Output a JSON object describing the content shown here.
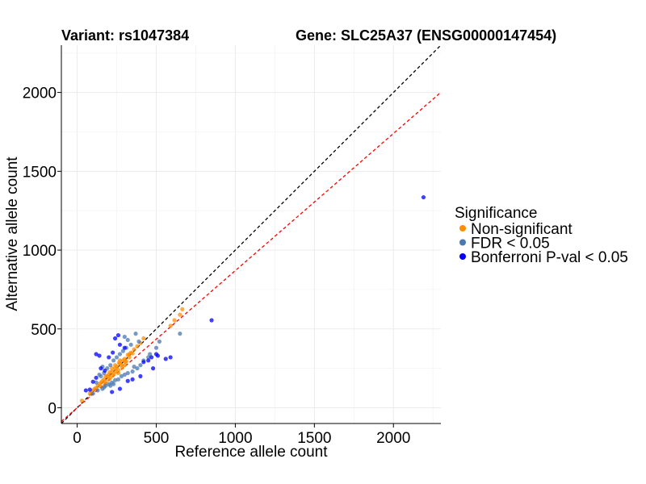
{
  "chart_data": {
    "type": "scatter",
    "title_left": "Variant: rs1047384",
    "title_right": "Gene: SLC25A37 (ENSG00000147454)",
    "xlabel": "Reference allele count",
    "ylabel": "Alternative allele count",
    "xlim": [
      -100,
      2300
    ],
    "ylim": [
      -100,
      2300
    ],
    "x_ticks": [
      0,
      500,
      1000,
      1500,
      2000
    ],
    "y_ticks": [
      0,
      500,
      1000,
      1500,
      2000
    ],
    "grid": true,
    "reference_lines": [
      {
        "name": "identity",
        "slope": 1.0,
        "intercept": 0,
        "color": "#000000",
        "style": "dashed"
      },
      {
        "name": "ratio",
        "slope": 0.87,
        "intercept": 0,
        "color": "#ff0000",
        "style": "dashed"
      }
    ],
    "legend": {
      "title": "Significance",
      "position": "right"
    },
    "series": [
      {
        "name": "Non-significant",
        "color": "#ff8c00",
        "points": [
          [
            30,
            45
          ],
          [
            80,
            90
          ],
          [
            100,
            110
          ],
          [
            120,
            125
          ],
          [
            140,
            150
          ],
          [
            150,
            135
          ],
          [
            160,
            170
          ],
          [
            170,
            180
          ],
          [
            180,
            165
          ],
          [
            190,
            200
          ],
          [
            200,
            210
          ],
          [
            210,
            190
          ],
          [
            220,
            230
          ],
          [
            230,
            215
          ],
          [
            240,
            250
          ],
          [
            250,
            260
          ],
          [
            260,
            240
          ],
          [
            270,
            280
          ],
          [
            280,
            270
          ],
          [
            290,
            300
          ],
          [
            300,
            310
          ],
          [
            310,
            295
          ],
          [
            320,
            335
          ],
          [
            330,
            320
          ],
          [
            340,
            350
          ],
          [
            350,
            345
          ],
          [
            360,
            370
          ],
          [
            380,
            390
          ],
          [
            400,
            410
          ],
          [
            420,
            440
          ],
          [
            150,
            160
          ],
          [
            175,
            150
          ],
          [
            205,
            225
          ],
          [
            225,
            205
          ],
          [
            245,
            230
          ],
          [
            265,
            285
          ],
          [
            285,
            255
          ],
          [
            305,
            290
          ],
          [
            200,
            180
          ],
          [
            180,
            200
          ],
          [
            240,
            270
          ],
          [
            260,
            220
          ],
          [
            130,
            140
          ],
          [
            110,
            120
          ],
          [
            90,
            100
          ],
          [
            615,
            555
          ],
          [
            650,
            590
          ],
          [
            665,
            625
          ],
          [
            590,
            520
          ],
          [
            220,
            250
          ],
          [
            270,
            300
          ],
          [
            300,
            270
          ],
          [
            330,
            340
          ]
        ]
      },
      {
        "name": "FDR < 0.05",
        "color": "#4a78b0",
        "points": [
          [
            100,
            90
          ],
          [
            120,
            160
          ],
          [
            130,
            110
          ],
          [
            150,
            200
          ],
          [
            160,
            120
          ],
          [
            170,
            220
          ],
          [
            180,
            140
          ],
          [
            190,
            250
          ],
          [
            200,
            150
          ],
          [
            210,
            270
          ],
          [
            220,
            160
          ],
          [
            230,
            300
          ],
          [
            240,
            175
          ],
          [
            250,
            320
          ],
          [
            260,
            180
          ],
          [
            270,
            340
          ],
          [
            280,
            200
          ],
          [
            290,
            360
          ],
          [
            300,
            210
          ],
          [
            310,
            380
          ],
          [
            320,
            220
          ],
          [
            340,
            400
          ],
          [
            350,
            230
          ],
          [
            360,
            260
          ],
          [
            370,
            470
          ],
          [
            380,
            250
          ],
          [
            390,
            420
          ],
          [
            400,
            270
          ],
          [
            420,
            300
          ],
          [
            450,
            320
          ],
          [
            460,
            340
          ],
          [
            500,
            380
          ],
          [
            520,
            420
          ],
          [
            650,
            470
          ],
          [
            140,
            210
          ],
          [
            160,
            260
          ],
          [
            170,
            130
          ],
          [
            210,
            140
          ],
          [
            230,
            150
          ],
          [
            320,
            430
          ],
          [
            300,
            450
          ]
        ]
      },
      {
        "name": "Bonferroni P-val < 0.05",
        "color": "#0000ff",
        "points": [
          [
            55,
            110
          ],
          [
            80,
            115
          ],
          [
            100,
            165
          ],
          [
            120,
            190
          ],
          [
            150,
            250
          ],
          [
            175,
            235
          ],
          [
            200,
            320
          ],
          [
            225,
            350
          ],
          [
            240,
            440
          ],
          [
            270,
            400
          ],
          [
            260,
            460
          ],
          [
            300,
            380
          ],
          [
            320,
            170
          ],
          [
            350,
            180
          ],
          [
            400,
            200
          ],
          [
            420,
            290
          ],
          [
            450,
            300
          ],
          [
            470,
            320
          ],
          [
            480,
            250
          ],
          [
            500,
            340
          ],
          [
            510,
            330
          ],
          [
            560,
            310
          ],
          [
            590,
            320
          ],
          [
            220,
            100
          ],
          [
            270,
            120
          ],
          [
            120,
            340
          ],
          [
            140,
            330
          ],
          [
            850,
            555
          ],
          [
            2190,
            1335
          ]
        ]
      }
    ]
  }
}
